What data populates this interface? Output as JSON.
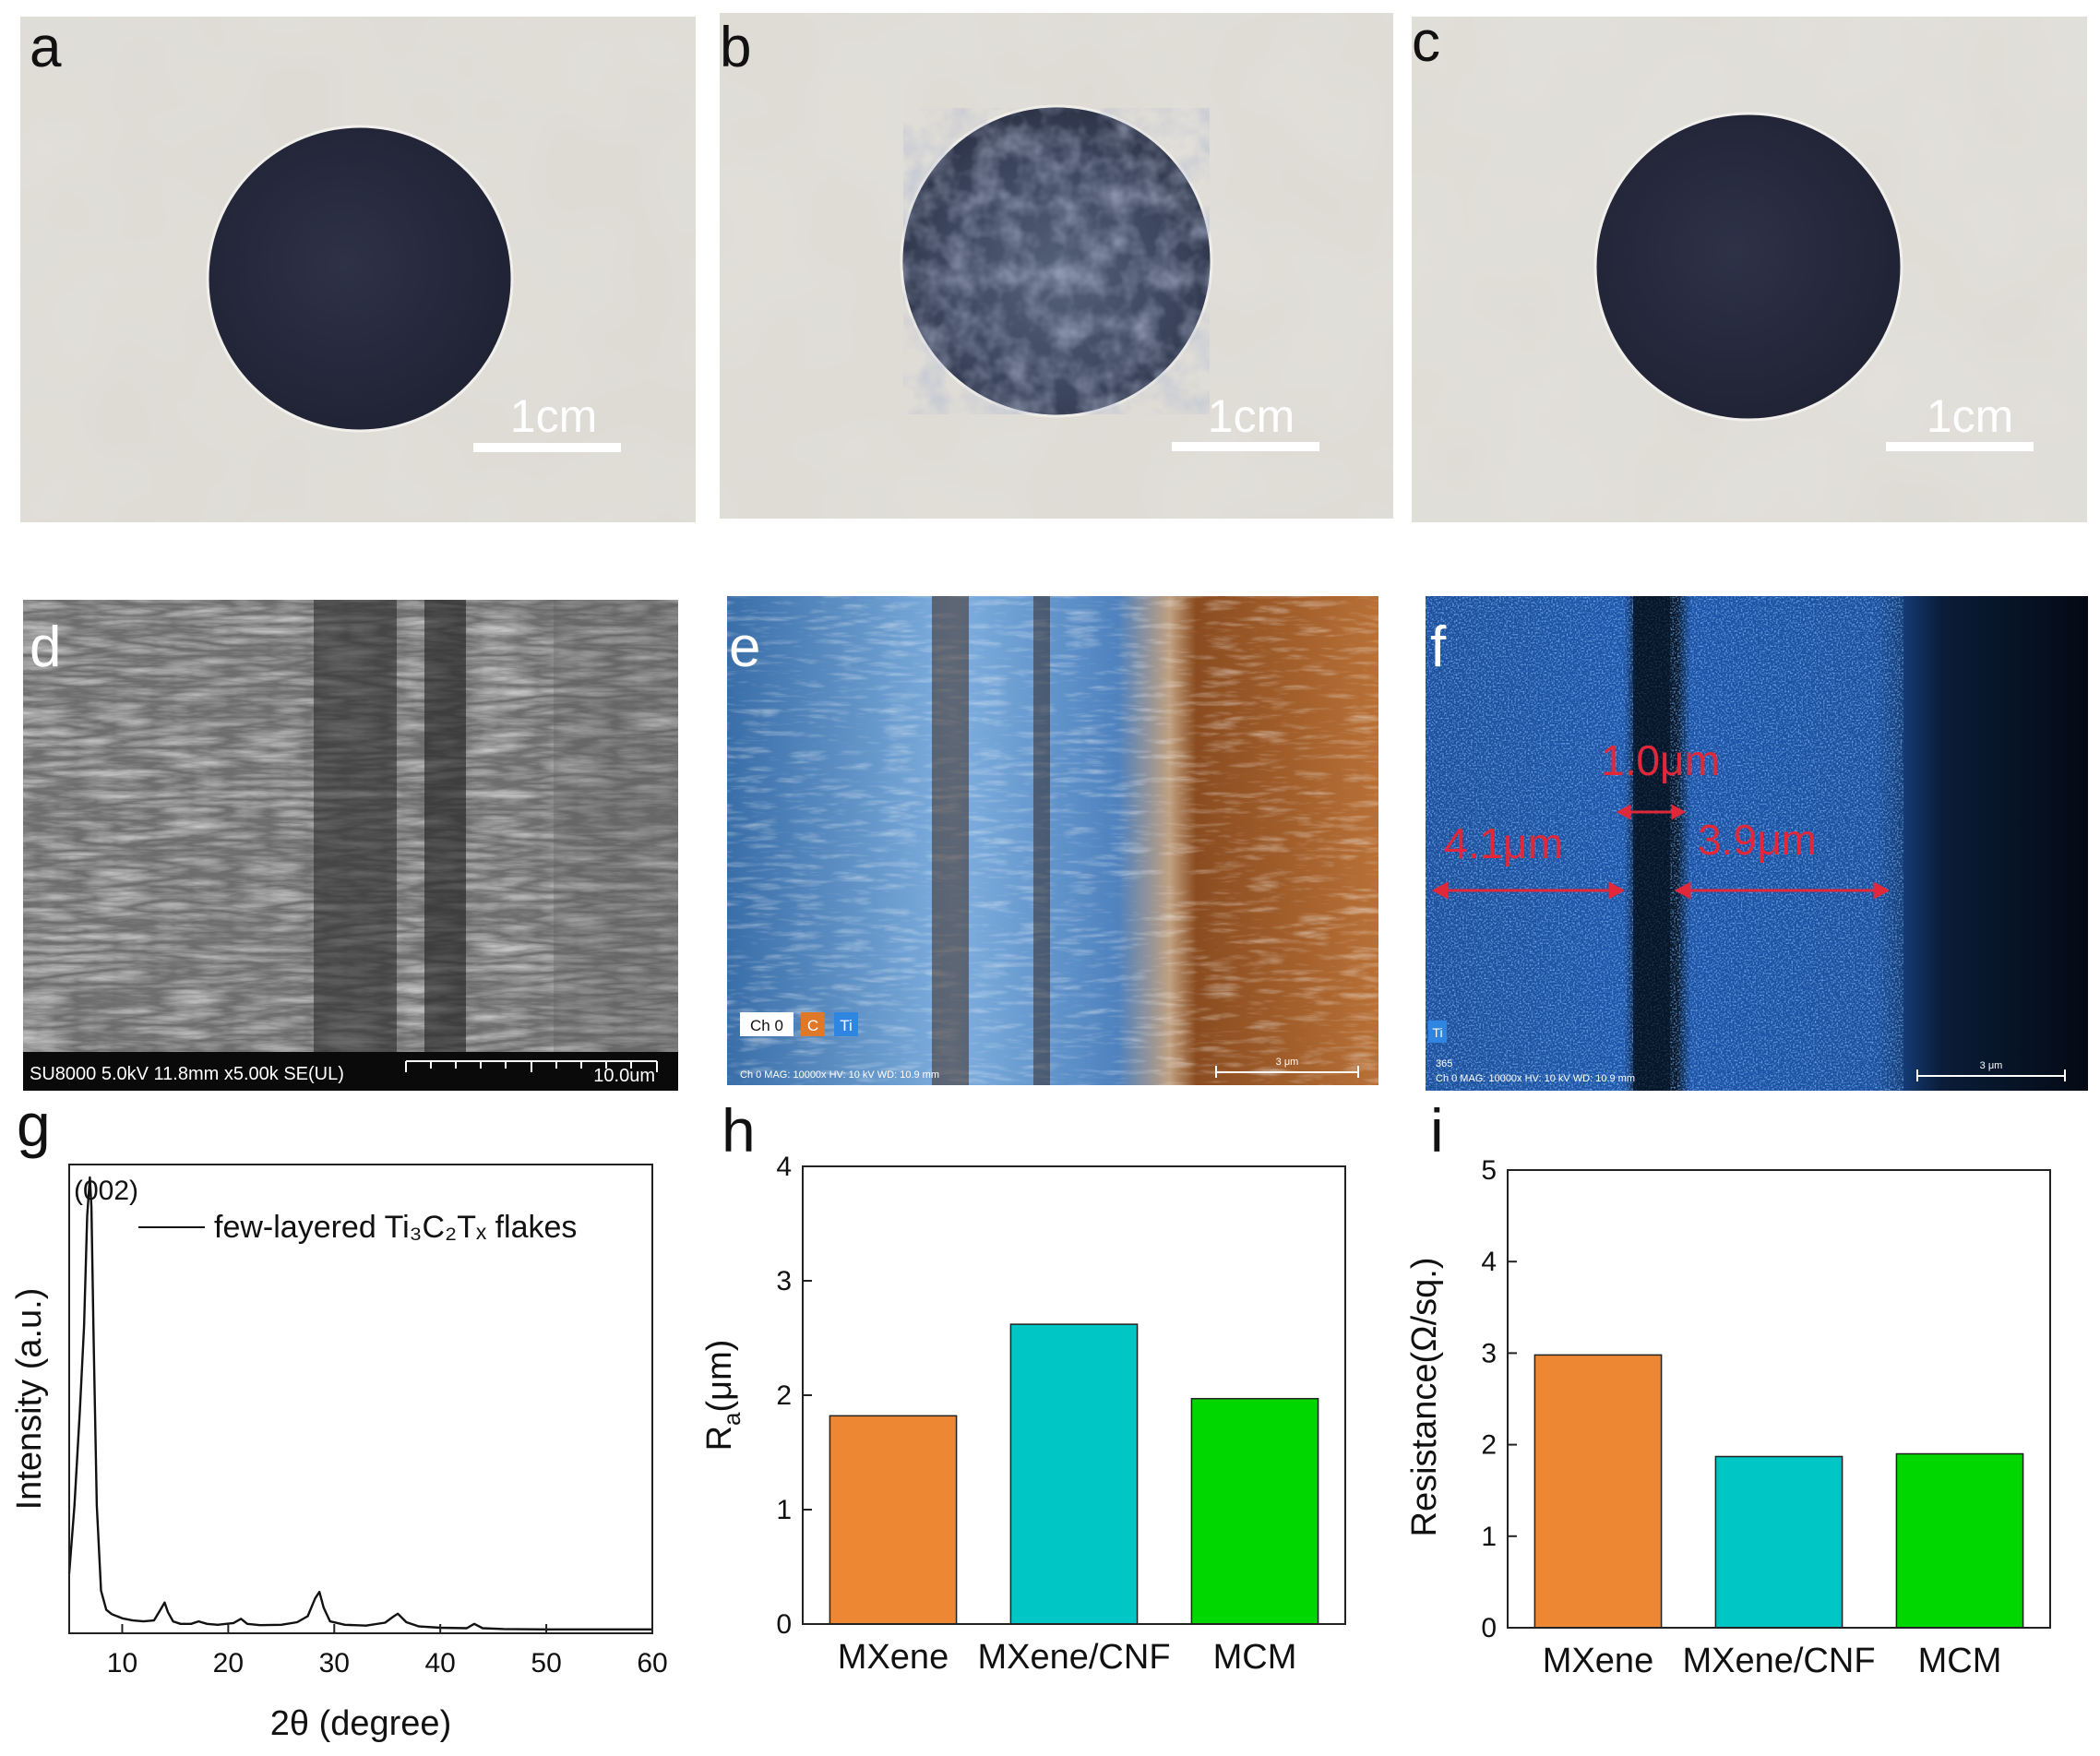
{
  "colors": {
    "mxene": "#EE8733",
    "mxene_cnf": "#00C6C6",
    "mcm": "#00D700",
    "photo_bg": "#E4E1DC",
    "film": "#262A3C",
    "sem_gray": "#7C7C7C",
    "eds_blue": "#2F7BD9",
    "eds_orange": "#B56A2E",
    "eds_dark": "#071320",
    "marker_red": "#E0283A"
  },
  "panels": {
    "a": {
      "label": "a",
      "scale_text": "1cm"
    },
    "b": {
      "label": "b",
      "scale_text": "1cm"
    },
    "c": {
      "label": "c",
      "scale_text": "1cm"
    },
    "d": {
      "label": "d",
      "info_text": "SU8000 5.0kV 11.8mm x5.00k SE(UL)",
      "scale_text": "10.0um"
    },
    "e": {
      "label": "e",
      "legend": [
        "Ch 0",
        "C",
        "Ti"
      ],
      "footer": "Ch 0   MAG: 10000x   HV: 10 kV   WD: 10.9 mm",
      "scale_text": "3 μm"
    },
    "f": {
      "label": "f",
      "measurements": [
        "4.1μm",
        "1.0μm",
        "3.9μm"
      ],
      "legend": [
        "Ti"
      ],
      "footer_id": "365",
      "footer": "Ch 0   MAG: 10000x   HV: 10 kV   WD: 10.9 mm",
      "scale_text": "3 μm"
    },
    "g": {
      "label": "g"
    },
    "h": {
      "label": "h"
    },
    "i": {
      "label": "i"
    }
  },
  "chart_data": [
    {
      "panel": "g",
      "type": "line",
      "xlabel": "2θ (degree)",
      "ylabel": "Intensity (a.u.)",
      "xlim": [
        5,
        60
      ],
      "ylim": [
        0,
        1.1
      ],
      "xticks": [
        10,
        20,
        30,
        40,
        50,
        60
      ],
      "peak_label": "(002)",
      "legend": {
        "text": "few-layered Ti₃C₂Tₓ flakes",
        "position": "top-right"
      },
      "series": [
        {
          "x": [
            5.0,
            5.5,
            6.0,
            6.4,
            6.7,
            6.95,
            7.1,
            7.3,
            7.6,
            8.0,
            8.5,
            9.0,
            10,
            11,
            12,
            13,
            13.6,
            14.0,
            14.3,
            14.8,
            15.5,
            16.5,
            17.2,
            18,
            19,
            20.5,
            21.2,
            21.8,
            23,
            25,
            26.5,
            27.5,
            28.2,
            28.6,
            29.0,
            29.6,
            31,
            33,
            34.8,
            35.5,
            36.0,
            36.8,
            38,
            40,
            42.5,
            43.2,
            44.0,
            46,
            50,
            55,
            60
          ],
          "y": [
            0.14,
            0.3,
            0.52,
            0.72,
            0.98,
            1.07,
            1.0,
            0.7,
            0.3,
            0.1,
            0.055,
            0.045,
            0.035,
            0.03,
            0.028,
            0.03,
            0.055,
            0.072,
            0.05,
            0.028,
            0.022,
            0.022,
            0.028,
            0.022,
            0.02,
            0.024,
            0.034,
            0.022,
            0.019,
            0.02,
            0.026,
            0.04,
            0.082,
            0.097,
            0.06,
            0.028,
            0.02,
            0.018,
            0.025,
            0.038,
            0.046,
            0.026,
            0.016,
            0.013,
            0.012,
            0.022,
            0.012,
            0.01,
            0.009,
            0.009,
            0.009
          ]
        }
      ]
    },
    {
      "panel": "h",
      "type": "bar",
      "categories": [
        "MXene",
        "MXene/CNF",
        "MCM"
      ],
      "values": [
        1.82,
        2.62,
        1.97
      ],
      "colors": [
        "#EE8733",
        "#00C6C6",
        "#00D700"
      ],
      "ylabel": "Ra(μm)",
      "ylabel_main": "R",
      "ylabel_sub": "a",
      "ylabel_rest": "(μm)",
      "ylim": [
        0,
        4
      ],
      "yticks": [
        0,
        1,
        2,
        3,
        4
      ]
    },
    {
      "panel": "i",
      "type": "bar",
      "categories": [
        "MXene",
        "MXene/CNF",
        "MCM"
      ],
      "values": [
        2.98,
        1.87,
        1.9
      ],
      "colors": [
        "#EE8733",
        "#00C6C6",
        "#00D700"
      ],
      "ylabel": "Resistance(Ω/sq.)",
      "ylim": [
        0,
        5
      ],
      "yticks": [
        0,
        1,
        2,
        3,
        4,
        5
      ]
    }
  ]
}
